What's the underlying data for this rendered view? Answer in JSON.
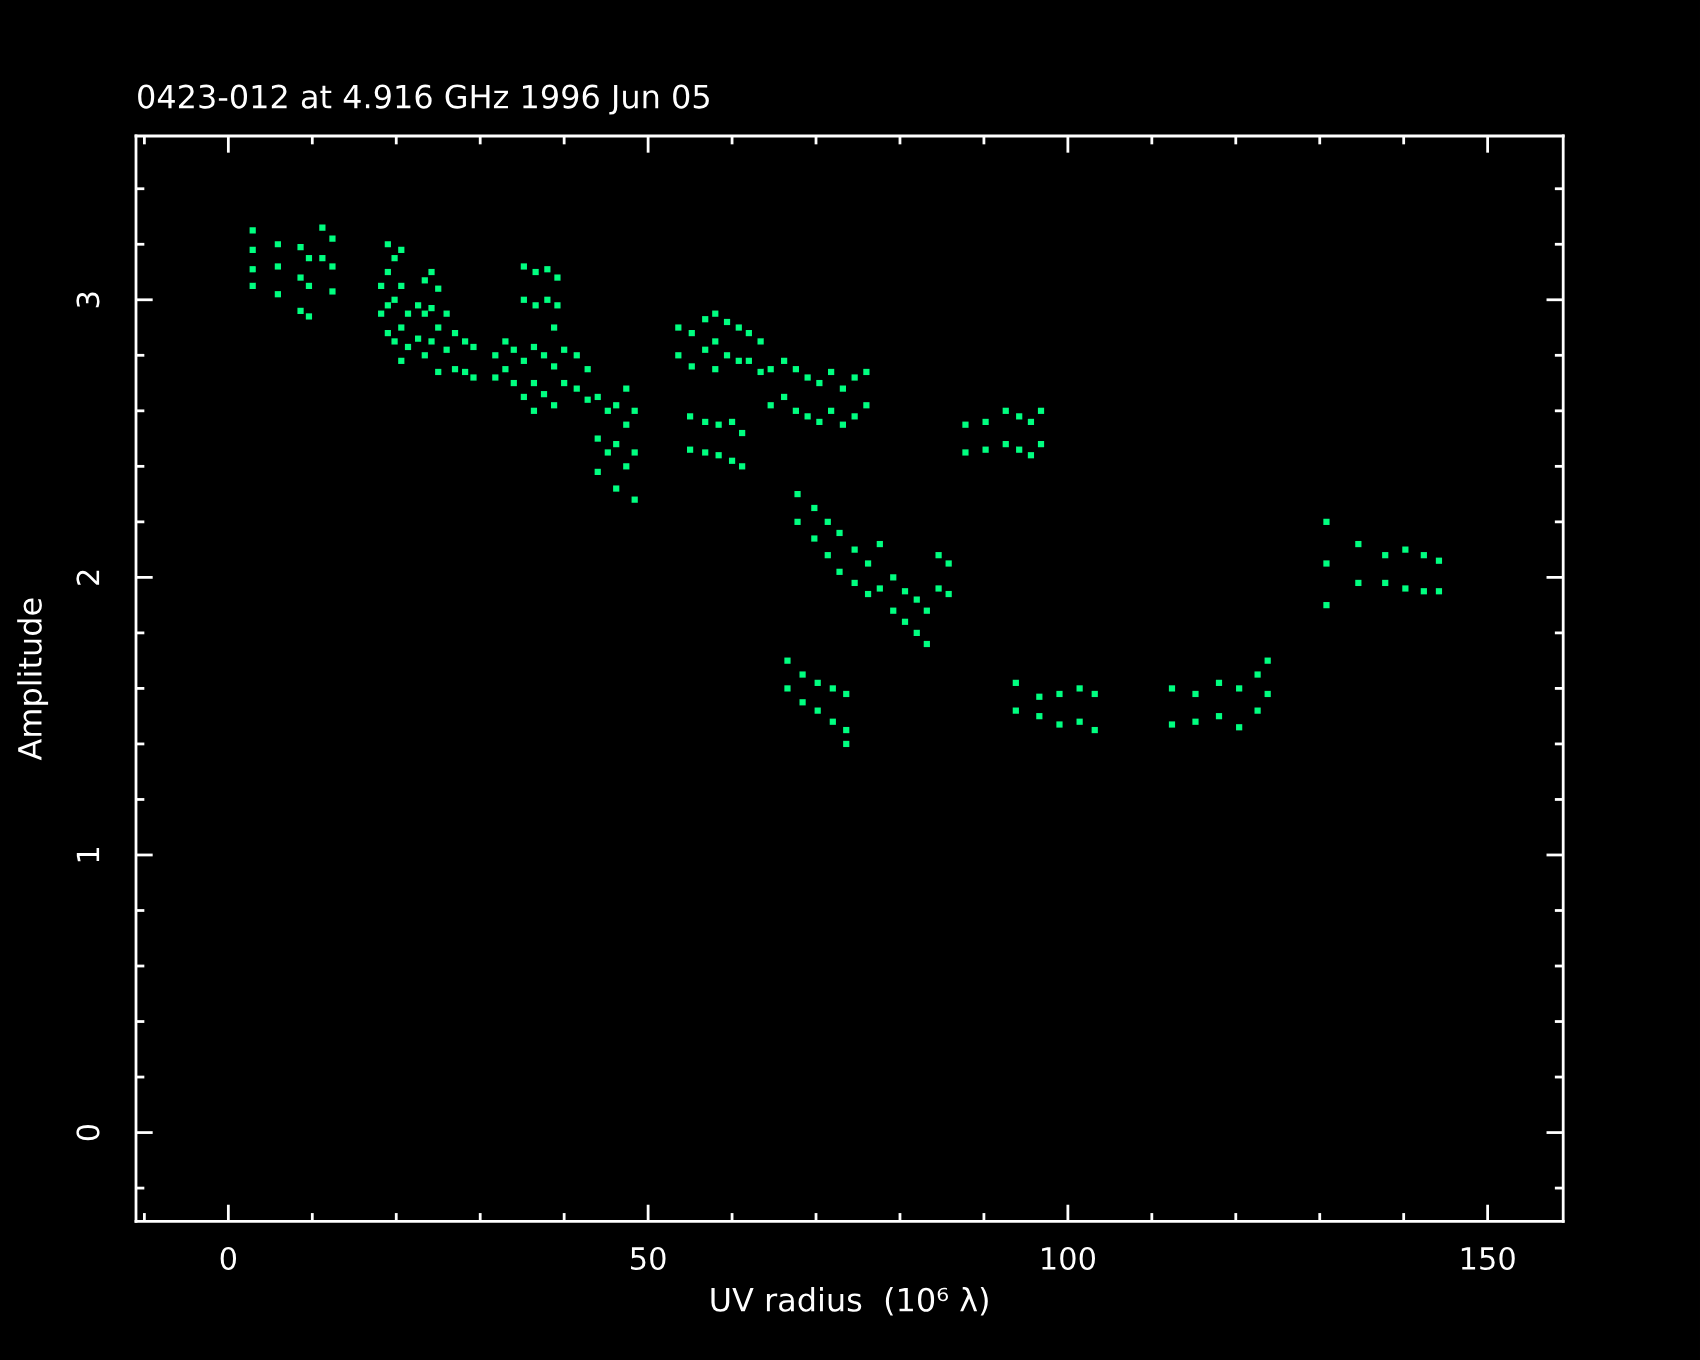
{
  "chart_data": {
    "type": "scatter",
    "title": "0423-012 at 4.916 GHz 1996 Jun 05",
    "xlabel": "UV radius  (10⁶ λ)",
    "ylabel": "Amplitude",
    "xlim": [
      -11,
      159
    ],
    "ylim": [
      -0.32,
      3.59
    ],
    "xticks": [
      0,
      50,
      100,
      150
    ],
    "yticks": [
      0,
      1,
      2,
      3
    ],
    "marker": "square",
    "series": [
      {
        "color": "#00ff80",
        "x": [
          2.9,
          2.9,
          2.9,
          2.9,
          5.9,
          5.9,
          5.9,
          8.6,
          8.6,
          8.6,
          9.6,
          9.6,
          9.6,
          11.2,
          11.2,
          12.4,
          12.4,
          12.4,
          18.2,
          18.2,
          19.0,
          19.0,
          19.0,
          19.0,
          19.8,
          19.8,
          19.8,
          20.6,
          20.6,
          20.6,
          20.6,
          21.4,
          21.4,
          22.6,
          22.6,
          23.4,
          23.4,
          23.4,
          24.2,
          24.2,
          24.2,
          25.0,
          25.0,
          25.0,
          26.0,
          26.0,
          27.0,
          27.0,
          28.2,
          28.2,
          29.2,
          29.2,
          31.8,
          31.8,
          33.0,
          33.0,
          34.0,
          34.0,
          35.2,
          35.2,
          36.4,
          36.4,
          36.4,
          37.6,
          37.6,
          38.8,
          38.8,
          38.8,
          40.0,
          40.0,
          35.2,
          35.2,
          36.6,
          36.6,
          38.0,
          38.0,
          39.2,
          39.2,
          41.5,
          41.5,
          42.8,
          42.8,
          44.0,
          44.0,
          44.0,
          45.2,
          45.2,
          46.2,
          46.2,
          46.2,
          47.4,
          47.4,
          47.4,
          48.4,
          48.4,
          48.4,
          53.6,
          53.6,
          55.2,
          55.2,
          56.8,
          56.8,
          58.0,
          58.0,
          58.0,
          59.4,
          59.4,
          60.8,
          60.8,
          62.0,
          62.0,
          63.4,
          63.4,
          55.0,
          55.0,
          56.8,
          56.8,
          58.4,
          58.4,
          60.0,
          60.0,
          61.2,
          61.2,
          64.6,
          64.6,
          66.2,
          66.2,
          67.6,
          67.6,
          69.0,
          69.0,
          70.4,
          70.4,
          71.8,
          71.8,
          73.2,
          73.2,
          74.6,
          74.6,
          76.0,
          76.0,
          67.8,
          67.8,
          69.8,
          69.8,
          71.4,
          71.4,
          72.8,
          72.8,
          74.6,
          74.6,
          76.2,
          76.2,
          77.6,
          77.6,
          79.2,
          79.2,
          80.6,
          80.6,
          82.0,
          82.0,
          83.2,
          83.2,
          84.6,
          84.6,
          85.8,
          85.8,
          66.6,
          66.6,
          68.4,
          68.4,
          70.2,
          70.2,
          72.0,
          72.0,
          73.6,
          73.6,
          73.6,
          87.8,
          87.8,
          90.2,
          90.2,
          92.6,
          92.6,
          94.2,
          94.2,
          95.6,
          95.6,
          96.8,
          96.8,
          93.8,
          93.8,
          96.6,
          96.6,
          99.0,
          99.0,
          101.4,
          101.4,
          103.2,
          103.2,
          112.4,
          112.4,
          115.2,
          115.2,
          118.0,
          118.0,
          120.4,
          120.4,
          122.6,
          122.6,
          123.8,
          123.8,
          130.8,
          130.8,
          130.8,
          134.6,
          134.6,
          137.8,
          137.8,
          140.2,
          140.2,
          142.4,
          142.4,
          144.2,
          144.2
        ],
        "values": [
          3.25,
          3.18,
          3.11,
          3.05,
          3.2,
          3.12,
          3.02,
          3.19,
          3.08,
          2.96,
          3.15,
          3.05,
          2.94,
          3.26,
          3.15,
          3.22,
          3.12,
          3.03,
          3.05,
          2.95,
          3.2,
          3.1,
          2.98,
          2.88,
          3.15,
          3.0,
          2.85,
          3.18,
          3.05,
          2.9,
          2.78,
          2.95,
          2.83,
          2.98,
          2.86,
          3.07,
          2.95,
          2.8,
          3.1,
          2.97,
          2.85,
          3.04,
          2.9,
          2.74,
          2.95,
          2.82,
          2.88,
          2.75,
          2.85,
          2.74,
          2.83,
          2.72,
          2.8,
          2.72,
          2.85,
          2.75,
          2.82,
          2.7,
          2.78,
          2.65,
          2.83,
          2.7,
          2.6,
          2.8,
          2.66,
          2.9,
          2.76,
          2.62,
          2.82,
          2.7,
          3.12,
          3.0,
          3.1,
          2.98,
          3.11,
          3.0,
          3.08,
          2.98,
          2.8,
          2.68,
          2.75,
          2.64,
          2.65,
          2.5,
          2.38,
          2.6,
          2.45,
          2.62,
          2.48,
          2.32,
          2.68,
          2.55,
          2.4,
          2.6,
          2.45,
          2.28,
          2.9,
          2.8,
          2.88,
          2.76,
          2.93,
          2.82,
          2.95,
          2.85,
          2.75,
          2.92,
          2.8,
          2.9,
          2.78,
          2.88,
          2.78,
          2.85,
          2.74,
          2.58,
          2.46,
          2.56,
          2.45,
          2.55,
          2.44,
          2.56,
          2.42,
          2.52,
          2.4,
          2.75,
          2.62,
          2.78,
          2.65,
          2.75,
          2.6,
          2.72,
          2.58,
          2.7,
          2.56,
          2.74,
          2.6,
          2.68,
          2.55,
          2.72,
          2.58,
          2.74,
          2.62,
          2.3,
          2.2,
          2.25,
          2.14,
          2.2,
          2.08,
          2.16,
          2.02,
          2.1,
          1.98,
          2.05,
          1.94,
          2.12,
          1.96,
          2.0,
          1.88,
          1.95,
          1.84,
          1.92,
          1.8,
          1.88,
          1.76,
          2.08,
          1.96,
          2.05,
          1.94,
          1.7,
          1.6,
          1.65,
          1.55,
          1.62,
          1.52,
          1.6,
          1.48,
          1.58,
          1.45,
          1.4,
          2.55,
          2.45,
          2.56,
          2.46,
          2.6,
          2.48,
          2.58,
          2.46,
          2.56,
          2.44,
          2.6,
          2.48,
          1.62,
          1.52,
          1.57,
          1.5,
          1.58,
          1.47,
          1.6,
          1.48,
          1.58,
          1.45,
          1.6,
          1.47,
          1.58,
          1.48,
          1.62,
          1.5,
          1.6,
          1.46,
          1.65,
          1.52,
          1.7,
          1.58,
          2.2,
          2.05,
          1.9,
          2.12,
          1.98,
          2.08,
          1.98,
          2.1,
          1.96,
          2.08,
          1.95,
          2.06,
          1.95
        ]
      }
    ]
  }
}
